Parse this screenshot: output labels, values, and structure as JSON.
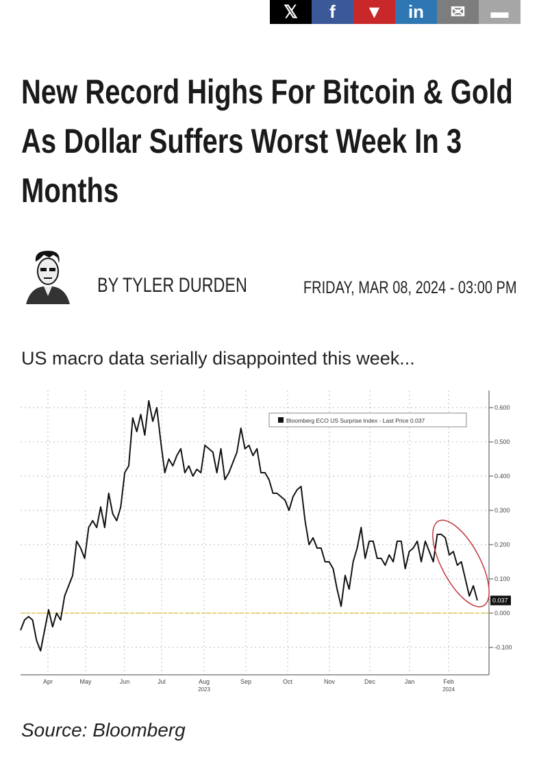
{
  "share": [
    {
      "name": "x",
      "glyph": "𝕏",
      "color": "#000000"
    },
    {
      "name": "facebook",
      "glyph": "f",
      "color": "#3b5998"
    },
    {
      "name": "reddit",
      "glyph": "▼",
      "color": "#c8282a"
    },
    {
      "name": "linkedin",
      "glyph": "in",
      "color": "#2f77b3"
    },
    {
      "name": "email",
      "glyph": "✉",
      "color": "#7d7d7d"
    },
    {
      "name": "print",
      "glyph": "▬",
      "color": "#a6a6a6"
    }
  ],
  "article": {
    "title": "New Record Highs For Bitcoin & Gold As Dollar Suffers Worst Week In 3 Months",
    "byline": "BY TYLER DURDEN",
    "date": "FRIDAY, MAR 08, 2024 - 03:00 PM",
    "lead": "US macro data serially disappointed this week...",
    "source": "Source: Bloomberg"
  },
  "chart_data": {
    "type": "line",
    "title": "",
    "legend": "Bloomberg ECO US Surprise Index - Last Price 0.037",
    "legend_position": "top-right",
    "last_price_label": "0.037",
    "last_price": 0.037,
    "ylim": [
      -0.18,
      0.65
    ],
    "yticks": [
      0.6,
      0.5,
      0.4,
      0.3,
      0.2,
      0.1,
      0.0,
      -0.1
    ],
    "ytick_labels": [
      "0.600",
      "0.500",
      "0.400",
      "0.300",
      "0.200",
      "0.100",
      "0.000",
      "-0.100"
    ],
    "xticks": [
      "Apr",
      "May",
      "Jun",
      "Jul",
      "Aug",
      "Sep",
      "Oct",
      "Nov",
      "Dec",
      "Jan",
      "Feb"
    ],
    "xtick_years": {
      "Aug": "2023",
      "Feb": "2024"
    },
    "reference_line": 0.0,
    "grid": true,
    "annotation": "red ellipse around Feb 2024 decline",
    "values": [
      -0.05,
      -0.02,
      -0.01,
      -0.02,
      -0.08,
      -0.11,
      -0.05,
      0.01,
      -0.04,
      0.0,
      -0.02,
      0.05,
      0.08,
      0.11,
      0.21,
      0.19,
      0.16,
      0.25,
      0.27,
      0.25,
      0.31,
      0.25,
      0.35,
      0.29,
      0.27,
      0.31,
      0.41,
      0.43,
      0.57,
      0.53,
      0.58,
      0.52,
      0.62,
      0.56,
      0.6,
      0.5,
      0.41,
      0.45,
      0.43,
      0.46,
      0.48,
      0.41,
      0.43,
      0.4,
      0.42,
      0.41,
      0.49,
      0.48,
      0.47,
      0.41,
      0.48,
      0.39,
      0.41,
      0.44,
      0.47,
      0.54,
      0.48,
      0.49,
      0.46,
      0.48,
      0.41,
      0.41,
      0.39,
      0.35,
      0.35,
      0.34,
      0.33,
      0.3,
      0.34,
      0.36,
      0.37,
      0.27,
      0.2,
      0.22,
      0.19,
      0.19,
      0.15,
      0.15,
      0.13,
      0.07,
      0.02,
      0.11,
      0.07,
      0.15,
      0.19,
      0.25,
      0.16,
      0.21,
      0.21,
      0.16,
      0.16,
      0.14,
      0.17,
      0.15,
      0.21,
      0.21,
      0.13,
      0.18,
      0.19,
      0.21,
      0.15,
      0.21,
      0.18,
      0.15,
      0.23,
      0.23,
      0.22,
      0.17,
      0.18,
      0.14,
      0.15,
      0.1,
      0.05,
      0.08,
      0.037
    ]
  }
}
